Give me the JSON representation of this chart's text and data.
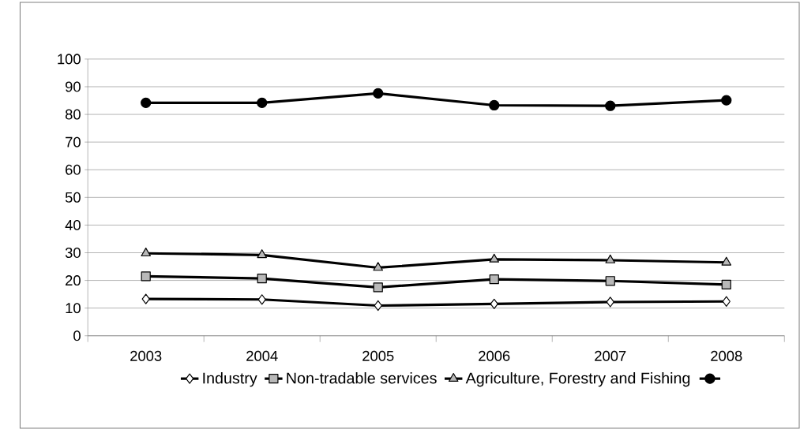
{
  "chart_data": {
    "type": "line",
    "categories": [
      "2003",
      "2004",
      "2005",
      "2006",
      "2007",
      "2008"
    ],
    "series": [
      {
        "name": "Industry",
        "color": "#000000",
        "marker": "diamond",
        "values": [
          13.3,
          13.1,
          10.9,
          11.5,
          12.2,
          12.4
        ]
      },
      {
        "name": "Non-tradable services",
        "color": "#000000",
        "marker": "square",
        "values": [
          21.5,
          20.7,
          17.5,
          20.4,
          19.8,
          18.5
        ]
      },
      {
        "name": "Agriculture, Forestry and Fishing",
        "color": "#000000",
        "marker": "triangle",
        "values": [
          29.8,
          29.2,
          24.6,
          27.6,
          27.3,
          26.5
        ]
      },
      {
        "color": "#000000",
        "marker": "circle",
        "values": [
          84.2,
          84.2,
          87.6,
          83.3,
          83.1,
          85.1
        ]
      }
    ],
    "ylim": [
      0,
      100
    ],
    "yticks": [
      0,
      10,
      20,
      30,
      40,
      50,
      60,
      70,
      80,
      90,
      100
    ],
    "grid": "y",
    "legend": "bottom",
    "line_style": "solid"
  }
}
